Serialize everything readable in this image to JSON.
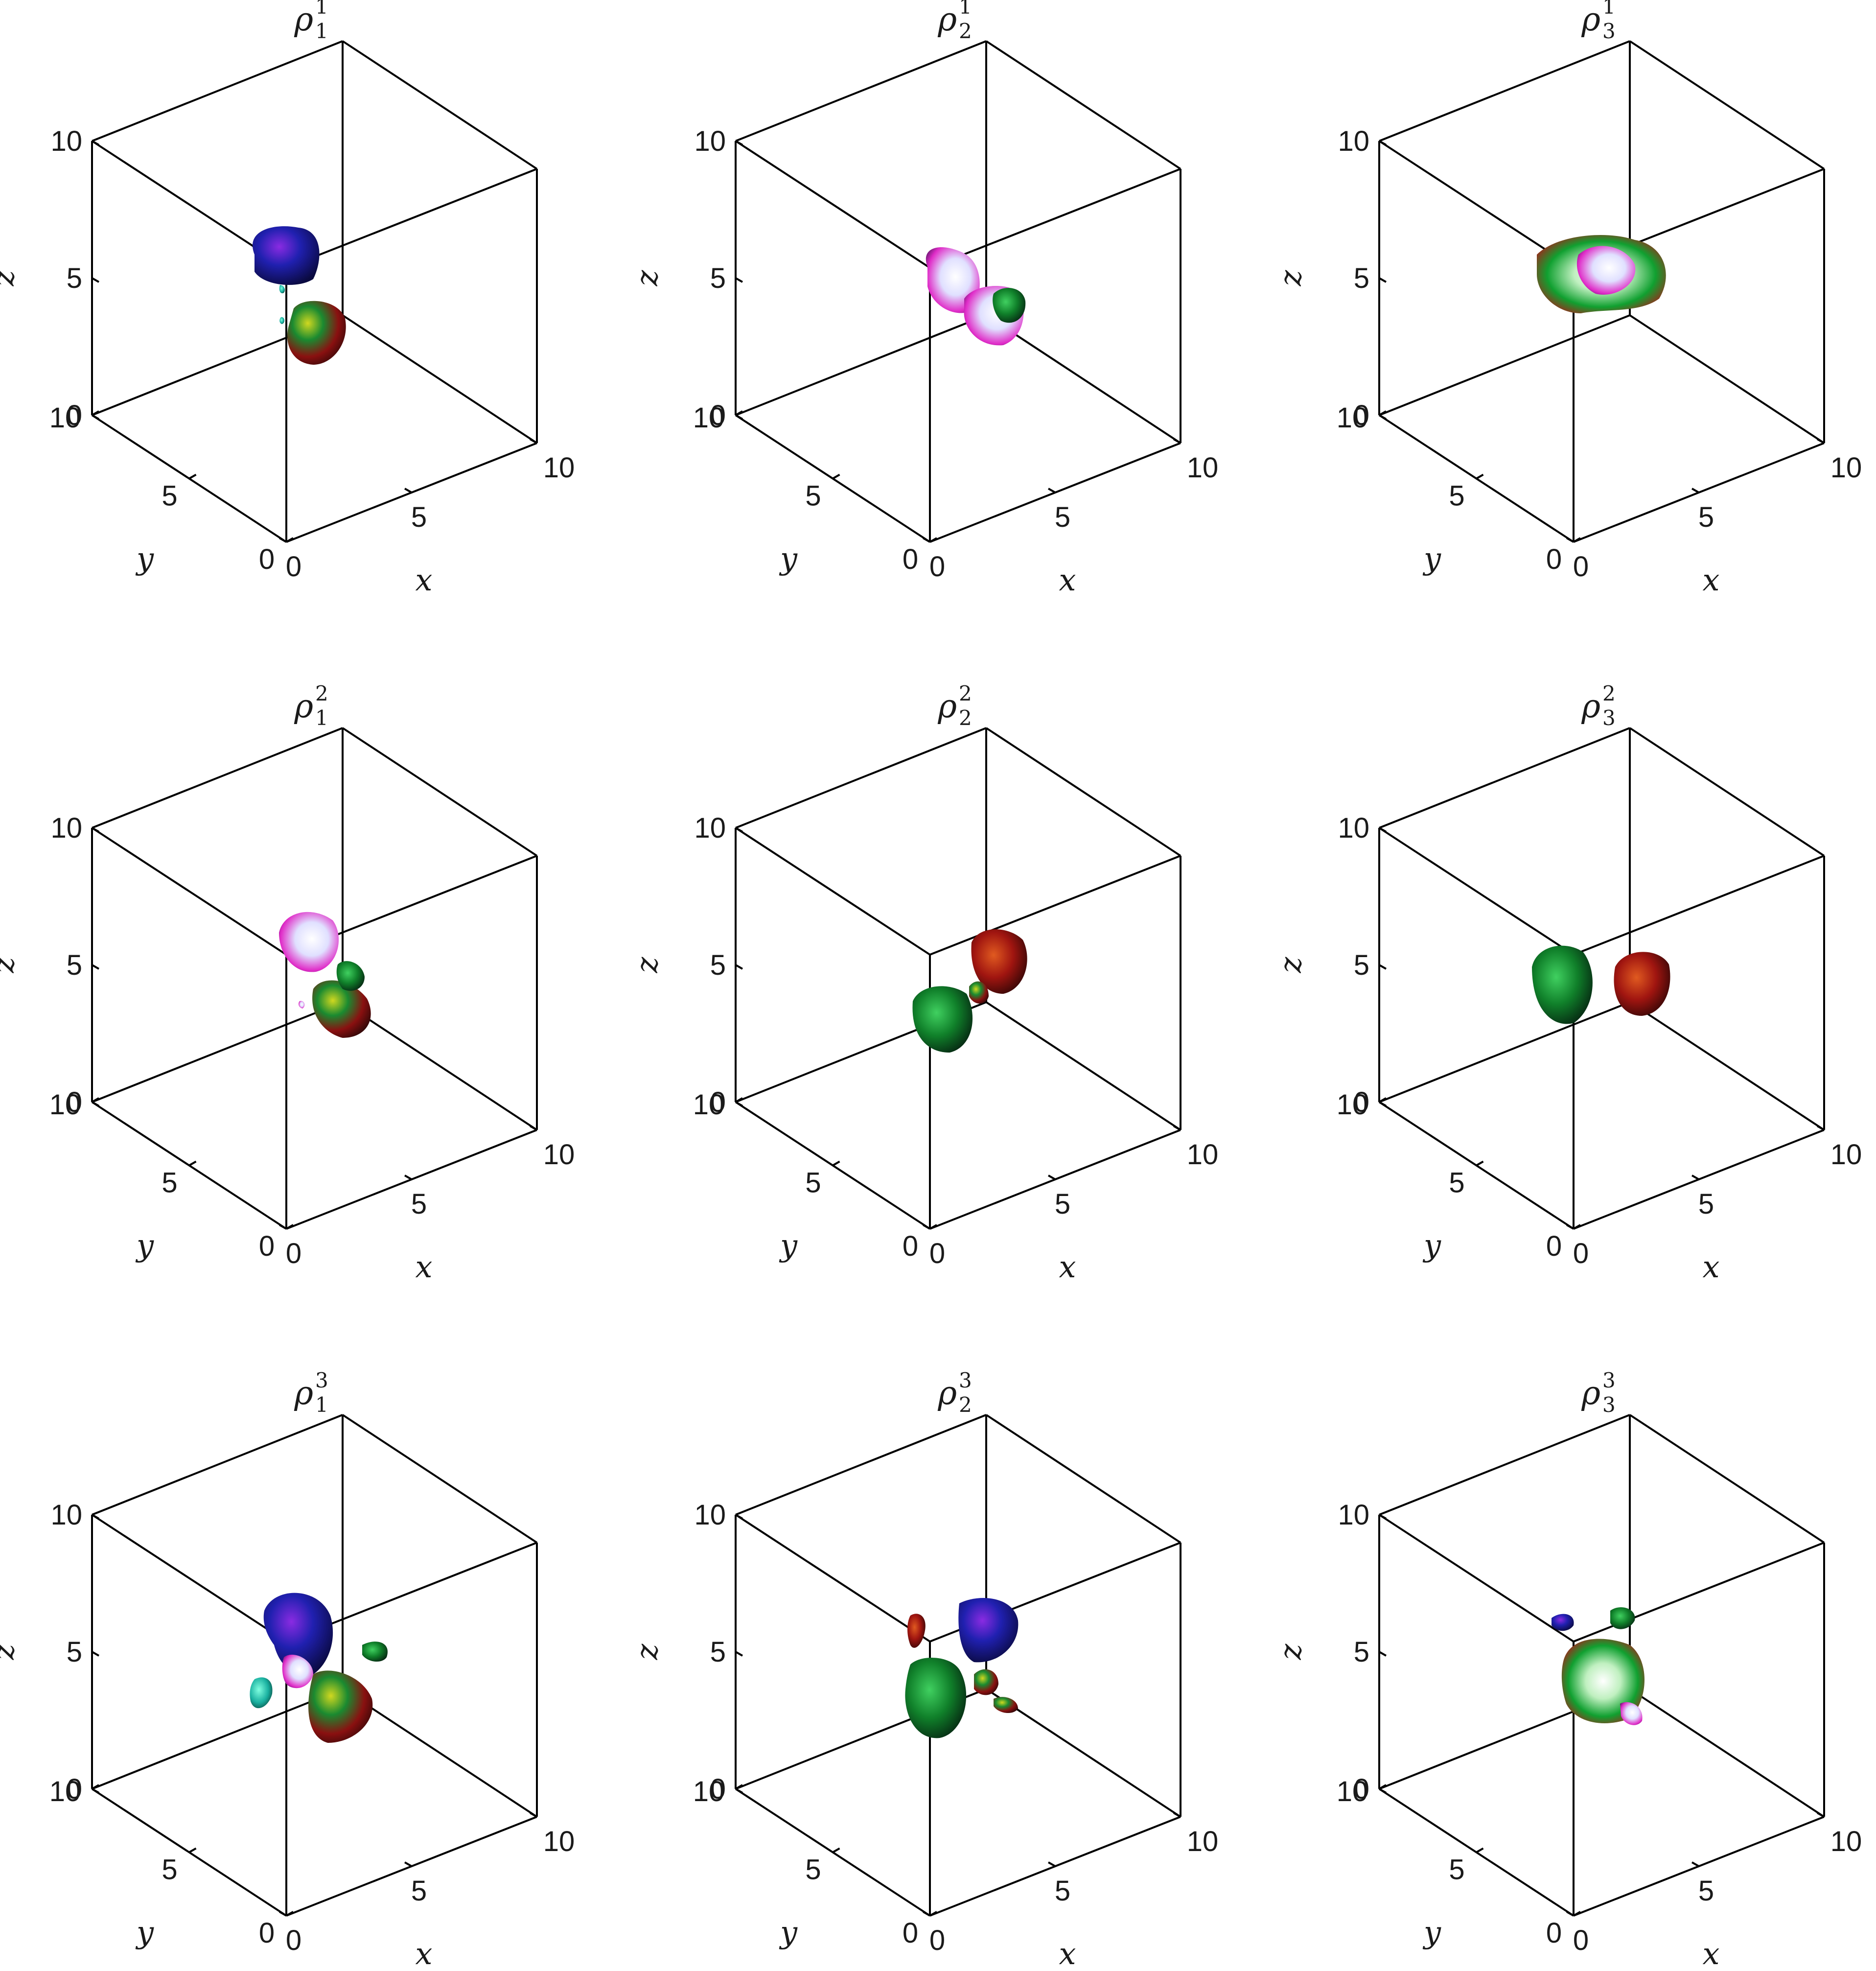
{
  "colors": {
    "background": "#ffffff",
    "axes": "#000000",
    "text": "#1a1a1a",
    "blob_palette": [
      "#1a1aa0",
      "#7a1a80",
      "#e02cc8",
      "#ffffff",
      "#19c7c0",
      "#10a030",
      "#c8d820",
      "#a81010",
      "#4a1008"
    ]
  },
  "chart_data": [
    {
      "type": "other",
      "title": "ρ",
      "title_sub": "1",
      "title_sup": "1",
      "xlabel": "x",
      "ylabel": "y",
      "zlabel": "z",
      "xlim": [
        0,
        10
      ],
      "ylim": [
        0,
        10
      ],
      "zlim": [
        0,
        10
      ],
      "xticks": [
        "0",
        "5",
        "10"
      ],
      "yticks": [
        "0",
        "5",
        "10"
      ],
      "zticks": [
        "0",
        "5",
        "10"
      ],
      "grid": false
    },
    {
      "type": "other",
      "title": "ρ",
      "title_sub": "2",
      "title_sup": "1",
      "xlabel": "x",
      "ylabel": "y",
      "zlabel": "z",
      "xlim": [
        0,
        10
      ],
      "ylim": [
        0,
        10
      ],
      "zlim": [
        0,
        10
      ],
      "xticks": [
        "0",
        "5",
        "10"
      ],
      "yticks": [
        "0",
        "5",
        "10"
      ],
      "zticks": [
        "0",
        "5",
        "10"
      ],
      "grid": false
    },
    {
      "type": "other",
      "title": "ρ",
      "title_sub": "3",
      "title_sup": "1",
      "xlabel": "x",
      "ylabel": "y",
      "zlabel": "z",
      "xlim": [
        0,
        10
      ],
      "ylim": [
        0,
        10
      ],
      "zlim": [
        0,
        10
      ],
      "xticks": [
        "0",
        "5",
        "10"
      ],
      "yticks": [
        "0",
        "5",
        "10"
      ],
      "zticks": [
        "0",
        "5",
        "10"
      ],
      "grid": false
    },
    {
      "type": "other",
      "title": "ρ",
      "title_sub": "1",
      "title_sup": "2",
      "xlabel": "x",
      "ylabel": "y",
      "zlabel": "z",
      "xlim": [
        0,
        10
      ],
      "ylim": [
        0,
        10
      ],
      "zlim": [
        0,
        10
      ],
      "xticks": [
        "0",
        "5",
        "10"
      ],
      "yticks": [
        "0",
        "5",
        "10"
      ],
      "zticks": [
        "0",
        "5",
        "10"
      ],
      "grid": false
    },
    {
      "type": "other",
      "title": "ρ",
      "title_sub": "2",
      "title_sup": "2",
      "xlabel": "x",
      "ylabel": "y",
      "zlabel": "z",
      "xlim": [
        0,
        10
      ],
      "ylim": [
        0,
        10
      ],
      "zlim": [
        0,
        10
      ],
      "xticks": [
        "0",
        "5",
        "10"
      ],
      "yticks": [
        "0",
        "5",
        "10"
      ],
      "zticks": [
        "0",
        "5",
        "10"
      ],
      "grid": false
    },
    {
      "type": "other",
      "title": "ρ",
      "title_sub": "3",
      "title_sup": "2",
      "xlabel": "x",
      "ylabel": "y",
      "zlabel": "z",
      "xlim": [
        0,
        10
      ],
      "ylim": [
        0,
        10
      ],
      "zlim": [
        0,
        10
      ],
      "xticks": [
        "0",
        "5",
        "10"
      ],
      "yticks": [
        "0",
        "5",
        "10"
      ],
      "zticks": [
        "0",
        "5",
        "10"
      ],
      "grid": false
    },
    {
      "type": "other",
      "title": "ρ",
      "title_sub": "1",
      "title_sup": "3",
      "xlabel": "x",
      "ylabel": "y",
      "zlabel": "z",
      "xlim": [
        0,
        10
      ],
      "ylim": [
        0,
        10
      ],
      "zlim": [
        0,
        10
      ],
      "xticks": [
        "0",
        "5",
        "10"
      ],
      "yticks": [
        "0",
        "5",
        "10"
      ],
      "zticks": [
        "0",
        "5",
        "10"
      ],
      "grid": false
    },
    {
      "type": "other",
      "title": "ρ",
      "title_sub": "2",
      "title_sup": "3",
      "xlabel": "x",
      "ylabel": "y",
      "zlabel": "z",
      "xlim": [
        0,
        10
      ],
      "ylim": [
        0,
        10
      ],
      "zlim": [
        0,
        10
      ],
      "xticks": [
        "0",
        "5",
        "10"
      ],
      "yticks": [
        "0",
        "5",
        "10"
      ],
      "zticks": [
        "0",
        "5",
        "10"
      ],
      "grid": false
    },
    {
      "type": "other",
      "title": "ρ",
      "title_sub": "3",
      "title_sup": "3",
      "xlabel": "x",
      "ylabel": "y",
      "zlabel": "z",
      "xlim": [
        0,
        10
      ],
      "ylim": [
        0,
        10
      ],
      "zlim": [
        0,
        10
      ],
      "xticks": [
        "0",
        "5",
        "10"
      ],
      "yticks": [
        "0",
        "5",
        "10"
      ],
      "zticks": [
        "0",
        "5",
        "10"
      ],
      "grid": false
    }
  ]
}
